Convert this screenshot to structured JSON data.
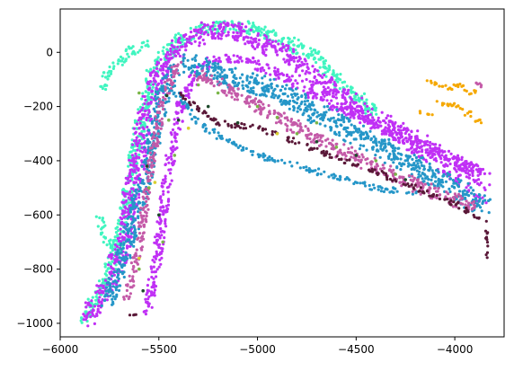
{
  "chart_data": {
    "type": "scatter",
    "title": "",
    "xlabel": "",
    "ylabel": "",
    "xlim": [
      -6000,
      -3750
    ],
    "ylim": [
      -1050,
      160
    ],
    "grid": false,
    "legend": "none",
    "x_ticks": [
      -6000,
      -5500,
      -5000,
      -4500,
      -4000
    ],
    "x_tick_labels": [
      "−6000",
      "−5500",
      "−5000",
      "−4500",
      "−4000"
    ],
    "y_ticks": [
      0,
      -200,
      -400,
      -600,
      -800,
      -1000
    ],
    "y_tick_labels": [
      "0",
      "−200",
      "−400",
      "−600",
      "−800",
      "−1000"
    ],
    "series": [
      {
        "color": "#40f5c0",
        "bands": [
          {
            "path": [
              [
                -5880,
                -990
              ],
              [
                -5760,
                -830
              ],
              [
                -5700,
                -700
              ],
              [
                -5600,
                -300
              ],
              [
                -5520,
                -50
              ],
              [
                -5400,
                40
              ],
              [
                -5250,
                90
              ],
              [
                -5100,
                100
              ],
              [
                -4950,
                70
              ],
              [
                -4800,
                20
              ],
              [
                -4700,
                -20
              ],
              [
                -4600,
                -100
              ],
              [
                -4400,
                -230
              ]
            ],
            "width": 45
          },
          {
            "path": [
              [
                -5790,
                -130
              ],
              [
                -5750,
                -70
              ],
              [
                -5650,
                0
              ],
              [
                -5550,
                40
              ]
            ],
            "width": 30
          },
          {
            "path": [
              [
                -5810,
                -600
              ],
              [
                -5760,
                -700
              ],
              [
                -5720,
                -740
              ],
              [
                -5700,
                -780
              ]
            ],
            "width": 25
          }
        ]
      },
      {
        "color": "#c030f5",
        "bands": [
          {
            "path": [
              [
                -5880,
                -990
              ],
              [
                -5760,
                -860
              ],
              [
                -5680,
                -700
              ],
              [
                -5620,
                -450
              ],
              [
                -5560,
                -200
              ],
              [
                -5480,
                -60
              ],
              [
                -5400,
                20
              ],
              [
                -5250,
                80
              ],
              [
                -5100,
                80
              ],
              [
                -5000,
                40
              ],
              [
                -4850,
                -10
              ],
              [
                -4750,
                -70
              ],
              [
                -4600,
                -140
              ],
              [
                -4450,
                -230
              ],
              [
                -4250,
                -300
              ],
              [
                -4100,
                -370
              ],
              [
                -3950,
                -440
              ],
              [
                -3840,
                -480
              ]
            ],
            "width": 60
          },
          {
            "path": [
              [
                -5560,
                -960
              ],
              [
                -5520,
                -800
              ],
              [
                -5480,
                -600
              ],
              [
                -5440,
                -380
              ],
              [
                -5380,
                -180
              ],
              [
                -5300,
                -60
              ],
              [
                -5180,
                -20
              ],
              [
                -5050,
                -30
              ],
              [
                -4900,
                -80
              ],
              [
                -4750,
                -140
              ],
              [
                -4600,
                -200
              ],
              [
                -4400,
                -270
              ],
              [
                -4200,
                -330
              ],
              [
                -4000,
                -400
              ],
              [
                -3850,
                -440
              ]
            ],
            "width": 35
          },
          {
            "path": [
              [
                -4580,
                -190
              ],
              [
                -4300,
                -320
              ],
              [
                -4100,
                -420
              ],
              [
                -3950,
                -500
              ],
              [
                -3840,
                -560
              ]
            ],
            "width": 18
          }
        ]
      },
      {
        "color": "#2596c8",
        "bands": [
          {
            "path": [
              [
                -5760,
                -920
              ],
              [
                -5700,
                -800
              ],
              [
                -5640,
                -650
              ],
              [
                -5580,
                -500
              ],
              [
                -5530,
                -320
              ],
              [
                -5480,
                -160
              ],
              [
                -5420,
                -60
              ]
            ],
            "width": 50
          },
          {
            "path": [
              [
                -5360,
                -40
              ],
              [
                -5200,
                -80
              ],
              [
                -5000,
                -120
              ],
              [
                -4800,
                -180
              ],
              [
                -4600,
                -260
              ],
              [
                -4400,
                -340
              ],
              [
                -4200,
                -420
              ],
              [
                -4000,
                -500
              ],
              [
                -3850,
                -560
              ]
            ],
            "width": 70
          },
          {
            "path": [
              [
                -5440,
                -120
              ],
              [
                -5300,
                -260
              ],
              [
                -5150,
                -330
              ],
              [
                -5000,
                -380
              ],
              [
                -4800,
                -420
              ],
              [
                -4600,
                -460
              ],
              [
                -4400,
                -500
              ],
              [
                -4200,
                -520
              ]
            ],
            "width": 20
          }
        ]
      },
      {
        "color": "#c45aa8",
        "bands": [
          {
            "path": [
              [
                -5660,
                -900
              ],
              [
                -5600,
                -720
              ],
              [
                -5560,
                -520
              ],
              [
                -5520,
                -320
              ],
              [
                -5470,
                -160
              ],
              [
                -5400,
                -40
              ]
            ],
            "width": 30
          },
          {
            "path": [
              [
                -5300,
                -80
              ],
              [
                -5100,
                -160
              ],
              [
                -4900,
                -240
              ],
              [
                -4700,
                -320
              ],
              [
                -4500,
                -390
              ],
              [
                -4300,
                -460
              ],
              [
                -4100,
                -520
              ],
              [
                -3900,
                -570
              ]
            ],
            "width": 45
          },
          {
            "path": [
              [
                -3900,
                -110
              ],
              [
                -3850,
                -130
              ]
            ],
            "width": 20
          }
        ]
      },
      {
        "color": "#5a1838",
        "bands": [
          {
            "path": [
              [
                -5660,
                -980
              ],
              [
                -5610,
                -960
              ]
            ],
            "width": 12
          },
          {
            "path": [
              [
                -5400,
                -150
              ],
              [
                -5300,
                -210
              ],
              [
                -5200,
                -260
              ],
              [
                -5000,
                -280
              ],
              [
                -4800,
                -330
              ],
              [
                -4600,
                -390
              ],
              [
                -4400,
                -440
              ],
              [
                -4200,
                -500
              ],
              [
                -4000,
                -560
              ],
              [
                -3850,
                -620
              ]
            ],
            "width": 18
          },
          {
            "path": [
              [
                -3840,
                -620
              ],
              [
                -3835,
                -760
              ]
            ],
            "width": 8
          }
        ]
      },
      {
        "color": "#f5a800",
        "bands": [
          {
            "path": [
              [
                -4130,
                -110
              ],
              [
                -4050,
                -130
              ],
              [
                -3980,
                -120
              ],
              [
                -3900,
                -150
              ]
            ],
            "width": 22
          },
          {
            "path": [
              [
                -4090,
                -190
              ],
              [
                -4000,
                -190
              ],
              [
                -3920,
                -230
              ],
              [
                -3870,
                -260
              ]
            ],
            "width": 20
          },
          {
            "path": [
              [
                -4180,
                -220
              ],
              [
                -4100,
                -230
              ]
            ],
            "width": 10
          }
        ]
      }
    ],
    "sparse": [
      {
        "color": "#7ab648",
        "points": [
          [
            -5600,
            -150
          ],
          [
            -5450,
            -250
          ],
          [
            -5200,
            -150
          ],
          [
            -4800,
            -300
          ],
          [
            -4600,
            -350
          ],
          [
            -4400,
            -400
          ],
          [
            -5550,
            -500
          ],
          [
            -5480,
            -700
          ],
          [
            -5600,
            -800
          ],
          [
            -4300,
            -450
          ],
          [
            -4700,
            -260
          ],
          [
            -5000,
            -200
          ],
          [
            -5300,
            -120
          ],
          [
            -4900,
            -240
          ],
          [
            -5420,
            -380
          ]
        ]
      },
      {
        "color": "#1e4a2c",
        "points": [
          [
            -5560,
            -420
          ],
          [
            -5500,
            -600
          ],
          [
            -5400,
            -250
          ],
          [
            -5250,
            -200
          ],
          [
            -4700,
            -330
          ],
          [
            -4500,
            -380
          ],
          [
            -5580,
            -880
          ],
          [
            -4250,
            -470
          ],
          [
            -5100,
            -260
          ],
          [
            -5460,
            -160
          ]
        ]
      },
      {
        "color": "#d8d030",
        "points": [
          [
            -5520,
            -480
          ],
          [
            -5350,
            -280
          ],
          [
            -4900,
            -300
          ],
          [
            -5600,
            -760
          ]
        ]
      }
    ]
  }
}
